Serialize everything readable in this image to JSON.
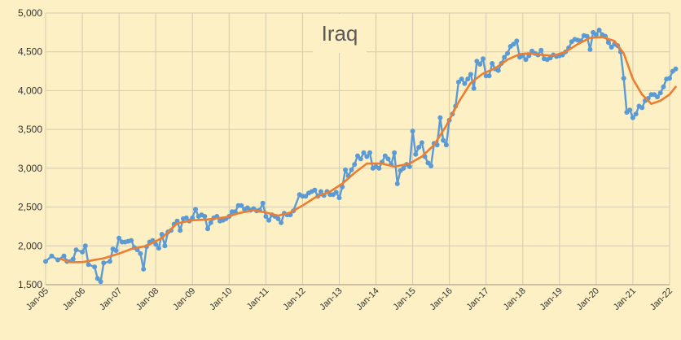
{
  "chart_data": {
    "type": "line",
    "title": "Iraq",
    "xlabel": "",
    "ylabel": "",
    "ylim": [
      1500,
      5000
    ],
    "xlim": [
      "2005-01",
      "2022-01"
    ],
    "grid": true,
    "legend": "none",
    "y_ticks": [
      "1,500",
      "2,000",
      "2,500",
      "3,000",
      "3,500",
      "4,000",
      "4,500",
      "5,000"
    ],
    "x_ticks": [
      "Jan-05",
      "Jan-06",
      "Jan-07",
      "Jan-08",
      "Jan-09",
      "Jan-10",
      "Jan-11",
      "Jan-12",
      "Jan-13",
      "Jan-14",
      "Jan-15",
      "Jan-16",
      "Jan-17",
      "Jan-18",
      "Jan-19",
      "Jan-20",
      "Jan-21",
      "Jan-22"
    ],
    "series": [
      {
        "role": "monthly",
        "color": "#5b9bd5",
        "points": [
          [
            "2005-01",
            1800
          ],
          [
            "2005-03",
            1870
          ],
          [
            "2005-05",
            1820
          ],
          [
            "2005-07",
            1870
          ],
          [
            "2005-08",
            1800
          ],
          [
            "2005-10",
            1830
          ],
          [
            "2005-11",
            1950
          ],
          [
            "2006-01",
            1920
          ],
          [
            "2006-02",
            2000
          ],
          [
            "2006-03",
            1760
          ],
          [
            "2006-05",
            1730
          ],
          [
            "2006-06",
            1580
          ],
          [
            "2006-07",
            1540
          ],
          [
            "2006-08",
            1780
          ],
          [
            "2006-10",
            1800
          ],
          [
            "2006-11",
            1960
          ],
          [
            "2006-12",
            1940
          ],
          [
            "2007-01",
            2100
          ],
          [
            "2007-02",
            2050
          ],
          [
            "2007-03",
            2050
          ],
          [
            "2007-04",
            2060
          ],
          [
            "2007-05",
            2070
          ],
          [
            "2007-06",
            1980
          ],
          [
            "2007-07",
            1950
          ],
          [
            "2007-08",
            1900
          ],
          [
            "2007-09",
            1700
          ],
          [
            "2007-10",
            1990
          ],
          [
            "2007-11",
            2050
          ],
          [
            "2007-12",
            2070
          ],
          [
            "2008-01",
            2020
          ],
          [
            "2008-02",
            1970
          ],
          [
            "2008-03",
            2150
          ],
          [
            "2008-04",
            2000
          ],
          [
            "2008-05",
            2180
          ],
          [
            "2008-06",
            2200
          ],
          [
            "2008-07",
            2280
          ],
          [
            "2008-08",
            2320
          ],
          [
            "2008-09",
            2200
          ],
          [
            "2008-10",
            2350
          ],
          [
            "2008-11",
            2360
          ],
          [
            "2008-12",
            2320
          ],
          [
            "2009-01",
            2360
          ],
          [
            "2009-02",
            2470
          ],
          [
            "2009-03",
            2380
          ],
          [
            "2009-04",
            2400
          ],
          [
            "2009-05",
            2380
          ],
          [
            "2009-06",
            2220
          ],
          [
            "2009-07",
            2300
          ],
          [
            "2009-08",
            2360
          ],
          [
            "2009-09",
            2380
          ],
          [
            "2009-10",
            2320
          ],
          [
            "2009-11",
            2330
          ],
          [
            "2009-12",
            2350
          ],
          [
            "2010-01",
            2380
          ],
          [
            "2010-02",
            2440
          ],
          [
            "2010-03",
            2440
          ],
          [
            "2010-04",
            2520
          ],
          [
            "2010-05",
            2520
          ],
          [
            "2010-06",
            2470
          ],
          [
            "2010-07",
            2490
          ],
          [
            "2010-08",
            2460
          ],
          [
            "2010-09",
            2480
          ],
          [
            "2010-10",
            2450
          ],
          [
            "2010-11",
            2460
          ],
          [
            "2010-12",
            2550
          ],
          [
            "2011-01",
            2380
          ],
          [
            "2011-02",
            2330
          ],
          [
            "2011-03",
            2400
          ],
          [
            "2011-04",
            2380
          ],
          [
            "2011-05",
            2350
          ],
          [
            "2011-06",
            2300
          ],
          [
            "2011-07",
            2420
          ],
          [
            "2011-08",
            2400
          ],
          [
            "2011-09",
            2400
          ],
          [
            "2011-10",
            2450
          ],
          [
            "2011-12",
            2660
          ],
          [
            "2012-01",
            2640
          ],
          [
            "2012-02",
            2640
          ],
          [
            "2012-03",
            2680
          ],
          [
            "2012-04",
            2700
          ],
          [
            "2012-05",
            2720
          ],
          [
            "2012-06",
            2640
          ],
          [
            "2012-07",
            2700
          ],
          [
            "2012-08",
            2650
          ],
          [
            "2012-09",
            2700
          ],
          [
            "2012-10",
            2660
          ],
          [
            "2012-11",
            2660
          ],
          [
            "2012-12",
            2690
          ],
          [
            "2013-01",
            2620
          ],
          [
            "2013-02",
            2760
          ],
          [
            "2013-03",
            2980
          ],
          [
            "2013-04",
            2900
          ],
          [
            "2013-05",
            2980
          ],
          [
            "2013-06",
            3050
          ],
          [
            "2013-07",
            3160
          ],
          [
            "2013-08",
            3120
          ],
          [
            "2013-09",
            3200
          ],
          [
            "2013-10",
            3150
          ],
          [
            "2013-11",
            3200
          ],
          [
            "2013-12",
            3000
          ],
          [
            "2014-01",
            3020
          ],
          [
            "2014-02",
            3000
          ],
          [
            "2014-03",
            3080
          ],
          [
            "2014-04",
            3160
          ],
          [
            "2014-05",
            3120
          ],
          [
            "2014-06",
            3050
          ],
          [
            "2014-07",
            3200
          ],
          [
            "2014-08",
            2800
          ],
          [
            "2014-09",
            2970
          ],
          [
            "2014-10",
            3000
          ],
          [
            "2014-11",
            3050
          ],
          [
            "2014-12",
            3020
          ],
          [
            "2015-01",
            3480
          ],
          [
            "2015-02",
            3180
          ],
          [
            "2015-03",
            3270
          ],
          [
            "2015-04",
            3330
          ],
          [
            "2015-05",
            3150
          ],
          [
            "2015-06",
            3070
          ],
          [
            "2015-07",
            3030
          ],
          [
            "2015-08",
            3320
          ],
          [
            "2015-09",
            3300
          ],
          [
            "2015-10",
            3650
          ],
          [
            "2015-11",
            3360
          ],
          [
            "2015-12",
            3300
          ],
          [
            "2016-01",
            3620
          ],
          [
            "2016-02",
            3700
          ],
          [
            "2016-03",
            3800
          ],
          [
            "2016-04",
            4110
          ],
          [
            "2016-05",
            4150
          ],
          [
            "2016-06",
            4090
          ],
          [
            "2016-07",
            4150
          ],
          [
            "2016-08",
            4210
          ],
          [
            "2016-09",
            4030
          ],
          [
            "2016-10",
            4380
          ],
          [
            "2016-11",
            4340
          ],
          [
            "2016-12",
            4410
          ],
          [
            "2017-01",
            4190
          ],
          [
            "2017-02",
            4190
          ],
          [
            "2017-03",
            4350
          ],
          [
            "2017-04",
            4280
          ],
          [
            "2017-05",
            4260
          ],
          [
            "2017-06",
            4350
          ],
          [
            "2017-07",
            4430
          ],
          [
            "2017-08",
            4480
          ],
          [
            "2017-09",
            4570
          ],
          [
            "2017-10",
            4600
          ],
          [
            "2017-11",
            4640
          ],
          [
            "2017-12",
            4430
          ],
          [
            "2018-01",
            4450
          ],
          [
            "2018-02",
            4400
          ],
          [
            "2018-03",
            4450
          ],
          [
            "2018-04",
            4510
          ],
          [
            "2018-05",
            4480
          ],
          [
            "2018-06",
            4460
          ],
          [
            "2018-07",
            4520
          ],
          [
            "2018-08",
            4410
          ],
          [
            "2018-09",
            4400
          ],
          [
            "2018-10",
            4420
          ],
          [
            "2018-11",
            4460
          ],
          [
            "2018-12",
            4440
          ],
          [
            "2019-01",
            4450
          ],
          [
            "2019-02",
            4460
          ],
          [
            "2019-03",
            4500
          ],
          [
            "2019-04",
            4550
          ],
          [
            "2019-05",
            4630
          ],
          [
            "2019-06",
            4660
          ],
          [
            "2019-07",
            4650
          ],
          [
            "2019-08",
            4640
          ],
          [
            "2019-09",
            4710
          ],
          [
            "2019-10",
            4700
          ],
          [
            "2019-11",
            4530
          ],
          [
            "2019-12",
            4750
          ],
          [
            "2020-01",
            4720
          ],
          [
            "2020-02",
            4780
          ],
          [
            "2020-03",
            4720
          ],
          [
            "2020-04",
            4700
          ],
          [
            "2020-05",
            4620
          ],
          [
            "2020-06",
            4560
          ],
          [
            "2020-07",
            4600
          ],
          [
            "2020-08",
            4580
          ],
          [
            "2020-09",
            4500
          ],
          [
            "2020-10",
            4160
          ],
          [
            "2020-11",
            3720
          ],
          [
            "2020-12",
            3750
          ],
          [
            "2021-01",
            3650
          ],
          [
            "2021-02",
            3700
          ],
          [
            "2021-03",
            3800
          ],
          [
            "2021-04",
            3780
          ],
          [
            "2021-05",
            3870
          ],
          [
            "2021-06",
            3900
          ],
          [
            "2021-07",
            3950
          ],
          [
            "2021-08",
            3950
          ],
          [
            "2021-09",
            3920
          ],
          [
            "2021-10",
            3970
          ],
          [
            "2021-11",
            4050
          ],
          [
            "2021-12",
            4150
          ],
          [
            "2022-01",
            4160
          ],
          [
            "2022-02",
            4250
          ],
          [
            "2022-03",
            4280
          ]
        ]
      },
      {
        "role": "smoothed trend",
        "color": "#ed7d31",
        "points": [
          [
            "2005-06",
            1830
          ],
          [
            "2005-09",
            1790
          ],
          [
            "2006-01",
            1790
          ],
          [
            "2006-05",
            1820
          ],
          [
            "2006-08",
            1840
          ],
          [
            "2007-01",
            1900
          ],
          [
            "2007-05",
            1960
          ],
          [
            "2007-10",
            2000
          ],
          [
            "2008-03",
            2100
          ],
          [
            "2008-08",
            2290
          ],
          [
            "2009-01",
            2330
          ],
          [
            "2009-06",
            2340
          ],
          [
            "2009-12",
            2370
          ],
          [
            "2010-04",
            2420
          ],
          [
            "2010-09",
            2460
          ],
          [
            "2011-01",
            2430
          ],
          [
            "2011-05",
            2390
          ],
          [
            "2011-09",
            2430
          ],
          [
            "2012-01",
            2520
          ],
          [
            "2012-05",
            2620
          ],
          [
            "2012-10",
            2700
          ],
          [
            "2013-02",
            2800
          ],
          [
            "2013-06",
            2940
          ],
          [
            "2013-10",
            3060
          ],
          [
            "2014-03",
            3060
          ],
          [
            "2014-07",
            3020
          ],
          [
            "2014-12",
            3060
          ],
          [
            "2015-04",
            3150
          ],
          [
            "2015-08",
            3300
          ],
          [
            "2015-12",
            3550
          ],
          [
            "2016-04",
            3850
          ],
          [
            "2016-08",
            4100
          ],
          [
            "2016-12",
            4220
          ],
          [
            "2017-04",
            4290
          ],
          [
            "2017-08",
            4400
          ],
          [
            "2017-12",
            4470
          ],
          [
            "2018-03",
            4480
          ],
          [
            "2018-07",
            4460
          ],
          [
            "2018-11",
            4450
          ],
          [
            "2019-03",
            4500
          ],
          [
            "2019-07",
            4600
          ],
          [
            "2019-11",
            4680
          ],
          [
            "2020-03",
            4690
          ],
          [
            "2020-07",
            4640
          ],
          [
            "2020-10",
            4480
          ],
          [
            "2021-01",
            4150
          ],
          [
            "2021-04",
            3950
          ],
          [
            "2021-07",
            3830
          ],
          [
            "2021-10",
            3870
          ],
          [
            "2022-01",
            3950
          ],
          [
            "2022-03",
            4050
          ]
        ]
      }
    ]
  }
}
